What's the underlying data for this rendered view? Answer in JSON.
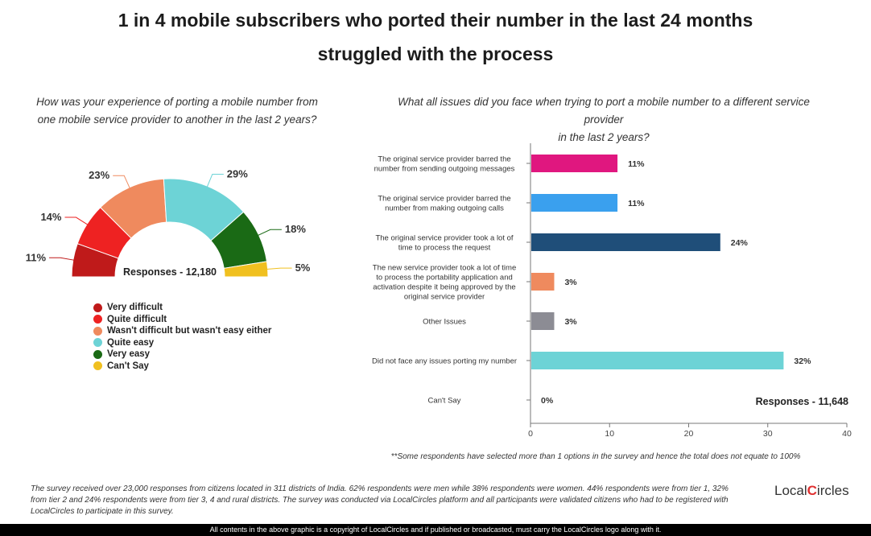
{
  "title": {
    "line1": "1 in 4 mobile subscribers who ported their number in the last 24 months",
    "line2": "struggled with the process"
  },
  "left_question": {
    "line1": "How was your experience of porting a mobile number from",
    "line2": "one mobile service provider to another in the last 2 years?"
  },
  "right_question": {
    "line1": "What all issues did you face when trying to port a mobile number to a different service provider",
    "line2": "in the last 2 years?"
  },
  "chart_data": [
    {
      "type": "pie",
      "variant": "semi-donut",
      "title": "How was your experience of porting a mobile number from one mobile service provider to another in the last 2 years?",
      "annotation": "Responses - 12,180",
      "legend_position": "bottom-left",
      "categories": [
        "Very difficult",
        "Quite difficult",
        "Wasn't difficult but wasn't easy either",
        "Quite easy",
        "Very easy",
        "Can't Say"
      ],
      "values": [
        11,
        14,
        23,
        29,
        18,
        5
      ],
      "value_labels": [
        "11%",
        "14%",
        "23%",
        "29%",
        "18%",
        "5%"
      ],
      "colors": [
        "#bf1a1a",
        "#ee2222",
        "#ef8a5e",
        "#6dd3d6",
        "#1a6a15",
        "#f0c020"
      ]
    },
    {
      "type": "bar",
      "orientation": "horizontal",
      "title": "What all issues did you face when trying to port a mobile number to a different service provider in the last 2 years?",
      "annotation": "Responses - 11,648",
      "categories": [
        [
          "The original service provider barred the",
          "number from sending outgoing messages"
        ],
        [
          "The original service provider barred the",
          "number from making outgoing calls"
        ],
        [
          "The original service provider took a lot of",
          "time to process the request"
        ],
        [
          "The new service provider took a lot of time",
          "to process the portability application and",
          "activation despite it being approved by the",
          "original service provider"
        ],
        [
          "Other Issues"
        ],
        [
          "Did not face any issues porting my number"
        ],
        [
          "Can't Say"
        ]
      ],
      "values": [
        11,
        11,
        24,
        3,
        3,
        32,
        0
      ],
      "value_labels": [
        "11%",
        "11%",
        "24%",
        "3%",
        "3%",
        "32%",
        "0%"
      ],
      "colors": [
        "#e0177f",
        "#3aa0ee",
        "#1f4e79",
        "#ef8a5e",
        "#8c8c94",
        "#6dd3d6",
        "#cccccc"
      ],
      "xlim": [
        0,
        40
      ],
      "xticks": [
        "0",
        "10",
        "20",
        "30",
        "40"
      ]
    }
  ],
  "note": "**Some respondents have selected more than 1 options in the survey and hence the total does not equate to 100%",
  "footer": "The survey received over 23,000 responses from citizens located in 311 districts of India. 62% respondents were men while 38% respondents were women. 44% respondents were from tier 1, 32% from tier 2 and 24% respondents were from tier 3, 4 and rural districts. The survey was conducted via LocalCircles platform and all participants were validated citizens who had to be registered with LocalCircles to participate in this survey.",
  "logo": {
    "part1": "Local",
    "part2": "C",
    "part3": "ircles"
  },
  "copyright": "All contents in the above graphic is a copyright of LocalCircles and if published or broadcasted, must carry the LocalCircles logo along with it."
}
